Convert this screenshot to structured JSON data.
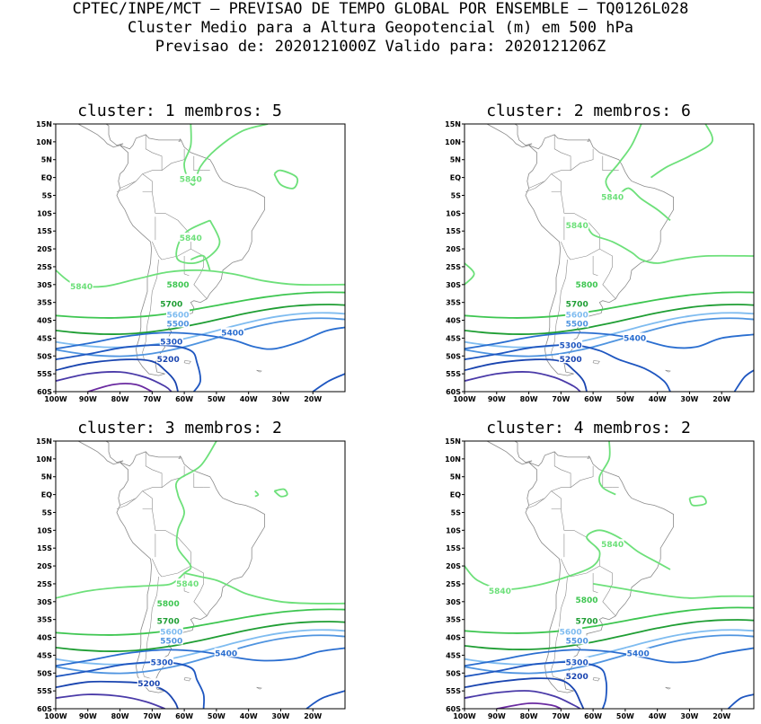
{
  "header": {
    "line1": "CPTEC/INPE/MCT – PREVISAO DE TEMPO GLOBAL POR ENSEMBLE – TQ0126L028",
    "line2": "Cluster Medio para a Altura Geopotencial (m) em 500 hPa",
    "line3": "Previsao de: 2020121000Z    Valido para: 2020121206Z"
  },
  "axes": {
    "lat_ticks": [
      "15N",
      "10N",
      "5N",
      "EQ",
      "5S",
      "10S",
      "15S",
      "20S",
      "25S",
      "30S",
      "35S",
      "40S",
      "45S",
      "50S",
      "55S",
      "60S"
    ],
    "lon_ticks": [
      "100W",
      "90W",
      "80W",
      "70W",
      "60W",
      "50W",
      "40W",
      "30W",
      "20W"
    ],
    "lon_range": [
      -100,
      -10
    ],
    "lat_range": [
      -60,
      15
    ]
  },
  "colors": {
    "5840": "#6de07a",
    "5800": "#3ec651",
    "5700": "#1f9e34",
    "5600": "#7fbcf0",
    "5500": "#4f94e0",
    "5400": "#2a6ed0",
    "5300": "#1e56c0",
    "5200": "#1a45b0",
    "5100": "#4a3aa8",
    "5000": "#6a2aa0",
    "coast": "#8a8a8a"
  },
  "panels": [
    {
      "title": "cluster: 1   membros: 5",
      "labels": [
        {
          "text": "5840",
          "lon": -58,
          "lat": -0.5,
          "color": "5840"
        },
        {
          "text": "5840",
          "lon": -58,
          "lat": -17,
          "color": "5840"
        },
        {
          "text": "5840",
          "lon": -92,
          "lat": -30.5,
          "color": "5840"
        },
        {
          "text": "5800",
          "lon": -62,
          "lat": -30,
          "color": "5800"
        },
        {
          "text": "5700",
          "lon": -64,
          "lat": -35.5,
          "color": "5700"
        },
        {
          "text": "5600",
          "lon": -62,
          "lat": -38.5,
          "color": "5600"
        },
        {
          "text": "5500",
          "lon": -62,
          "lat": -41,
          "color": "5500"
        },
        {
          "text": "5400",
          "lon": -45,
          "lat": -43.5,
          "color": "5400"
        },
        {
          "text": "5300",
          "lon": -64,
          "lat": -46,
          "color": "5300"
        },
        {
          "text": "5200",
          "lon": -65,
          "lat": -51,
          "color": "5200"
        }
      ]
    },
    {
      "title": "cluster: 2   membros: 6",
      "labels": [
        {
          "text": "5840",
          "lon": -54,
          "lat": -5.5,
          "color": "5840"
        },
        {
          "text": "5840",
          "lon": -65,
          "lat": -13.5,
          "color": "5840"
        },
        {
          "text": "5800",
          "lon": -62,
          "lat": -30,
          "color": "5800"
        },
        {
          "text": "5700",
          "lon": -65,
          "lat": -35.5,
          "color": "5700"
        },
        {
          "text": "5600",
          "lon": -65,
          "lat": -38.5,
          "color": "5600"
        },
        {
          "text": "5500",
          "lon": -65,
          "lat": -41,
          "color": "5500"
        },
        {
          "text": "5400",
          "lon": -47,
          "lat": -45,
          "color": "5400"
        },
        {
          "text": "5300",
          "lon": -67,
          "lat": -47,
          "color": "5300"
        },
        {
          "text": "5200",
          "lon": -67,
          "lat": -51,
          "color": "5200"
        }
      ]
    },
    {
      "title": "cluster: 3   membros: 2",
      "labels": [
        {
          "text": "5840",
          "lon": -59,
          "lat": -25,
          "color": "5840"
        },
        {
          "text": "5800",
          "lon": -65,
          "lat": -30.5,
          "color": "5800"
        },
        {
          "text": "5700",
          "lon": -65,
          "lat": -35.5,
          "color": "5700"
        },
        {
          "text": "5600",
          "lon": -64,
          "lat": -38.5,
          "color": "5600"
        },
        {
          "text": "5500",
          "lon": -64,
          "lat": -41,
          "color": "5500"
        },
        {
          "text": "5400",
          "lon": -47,
          "lat": -44.5,
          "color": "5400"
        },
        {
          "text": "5300",
          "lon": -67,
          "lat": -47,
          "color": "5300"
        },
        {
          "text": "5200",
          "lon": -71,
          "lat": -53,
          "color": "5200"
        }
      ]
    },
    {
      "title": "cluster: 4   membros: 2",
      "labels": [
        {
          "text": "5840",
          "lon": -54,
          "lat": -14,
          "color": "5840"
        },
        {
          "text": "5840",
          "lon": -89,
          "lat": -27,
          "color": "5840"
        },
        {
          "text": "5800",
          "lon": -62,
          "lat": -29.5,
          "color": "5800"
        },
        {
          "text": "5700",
          "lon": -62,
          "lat": -35.5,
          "color": "5700"
        },
        {
          "text": "5600",
          "lon": -67,
          "lat": -38.5,
          "color": "5600"
        },
        {
          "text": "5500",
          "lon": -65,
          "lat": -41,
          "color": "5500"
        },
        {
          "text": "5400",
          "lon": -46,
          "lat": -44.5,
          "color": "5400"
        },
        {
          "text": "5300",
          "lon": -65,
          "lat": -47,
          "color": "5300"
        },
        {
          "text": "5200",
          "lon": -65,
          "lat": -51,
          "color": "5200"
        }
      ]
    }
  ]
}
